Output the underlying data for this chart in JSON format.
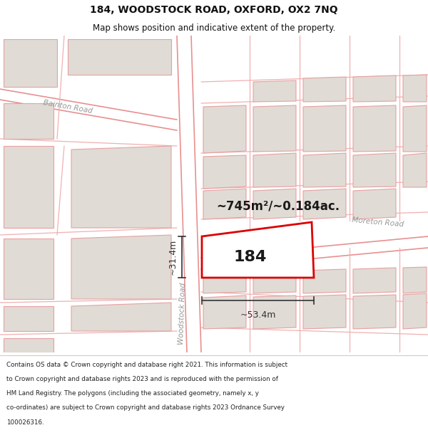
{
  "title_line1": "184, WOODSTOCK ROAD, OXFORD, OX2 7NQ",
  "title_line2": "Map shows position and indicative extent of the property.",
  "area_text": "~745m²/~0.184ac.",
  "label_184": "184",
  "dim_width": "~53.4m",
  "dim_height": "~31.4m",
  "road_label_woodstock": "Woodstock Road",
  "road_label_moreton": "Moreton Road",
  "road_label_bainton": "Bainton Road",
  "footer_lines": [
    "Contains OS data © Crown copyright and database right 2021. This information is subject",
    "to Crown copyright and database rights 2023 and is reproduced with the permission of",
    "HM Land Registry. The polygons (including the associated geometry, namely x, y",
    "co-ordinates) are subject to Crown copyright and database rights 2023 Ordnance Survey",
    "100026316."
  ],
  "map_bg": "#f7f5f2",
  "highlight_color": "#dd0000",
  "building_fill": "#e0dbd5",
  "building_edge": "#e8a0a0",
  "road_color": "#f0b0b0",
  "road_color2": "#e89090",
  "footer_bg": "#ffffff",
  "title_bg": "#ffffff",
  "dim_color": "#333333",
  "text_color": "#333333",
  "road_text_color": "#999999"
}
